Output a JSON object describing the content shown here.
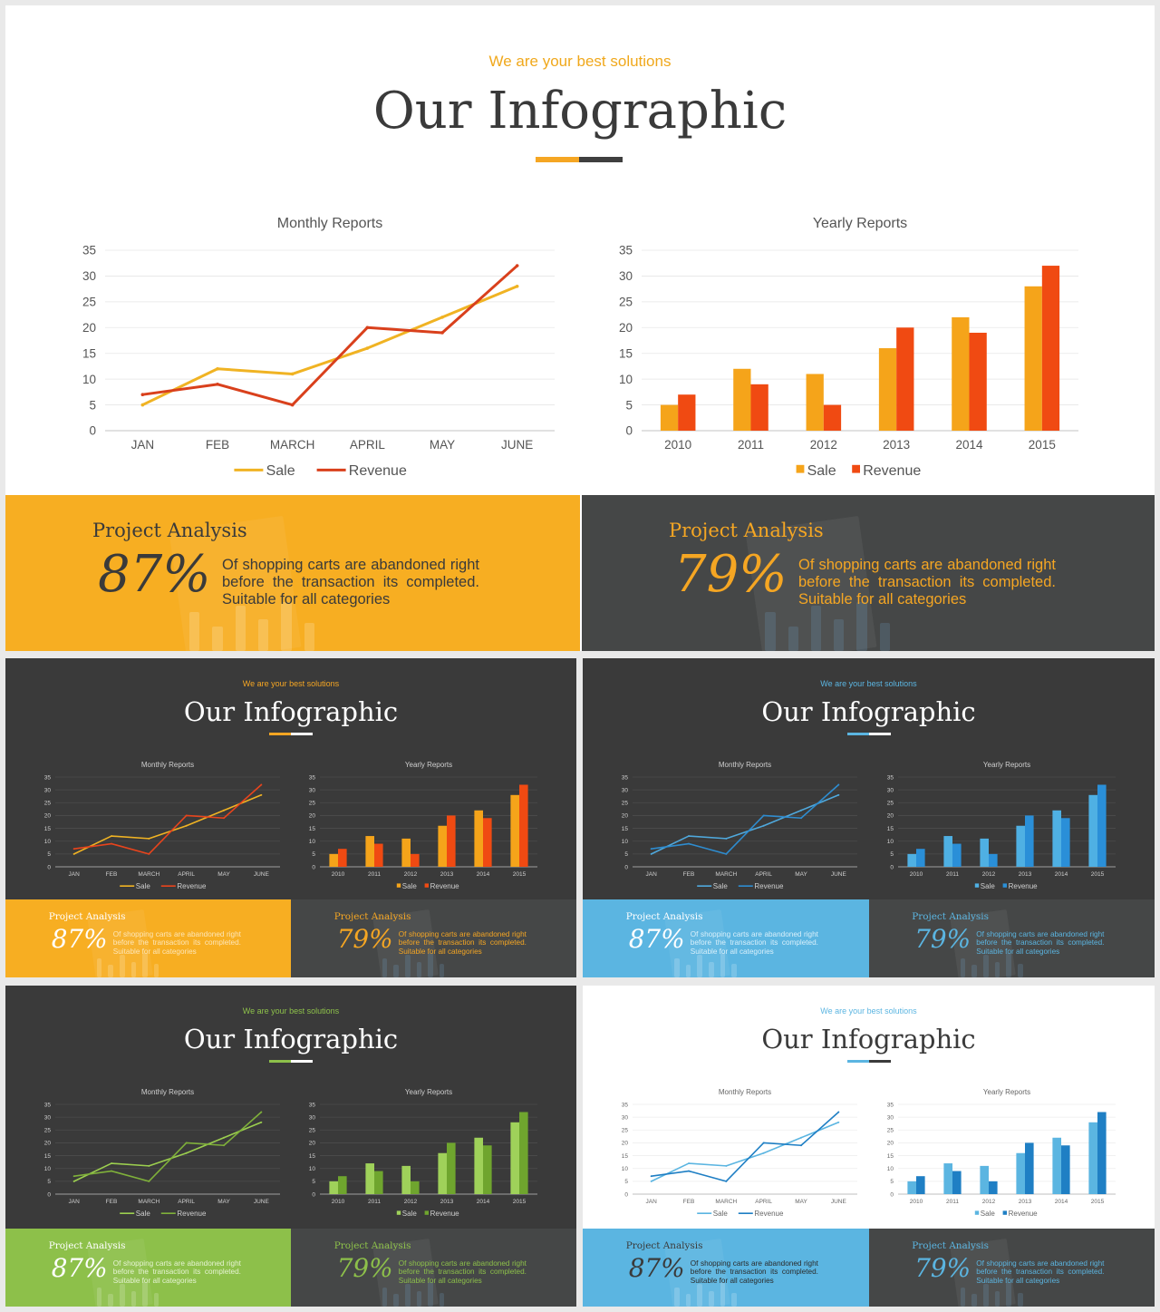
{
  "main": {
    "subtitle": "We are your best solutions",
    "title": "Our Infographic",
    "monthly_title": "Monthly Reports",
    "yearly_title": "Yearly Reports",
    "legend_sale": "Sale",
    "legend_revenue": "Revenue"
  },
  "panels": {
    "heading": "Project Analysis",
    "pct_left": "87%",
    "pct_right": "79%",
    "desc": "Of shopping carts are abandoned right before the transaction its completed. Suitable for all categories"
  },
  "colors": {
    "orange": "#f5a623",
    "orange_line": "#f0b323",
    "red": "#e84c1e",
    "dark": "#3f3f3f",
    "dark_bg": "#3a3a3a",
    "blue": "#5bb5e1",
    "blue_dark": "#1f7fc4",
    "green": "#8dc04a",
    "green_dark": "#6a9a2a"
  },
  "chart_data": [
    {
      "type": "line",
      "title": "Monthly Reports",
      "categories": [
        "JAN",
        "FEB",
        "MARCH",
        "APRIL",
        "MAY",
        "JUNE"
      ],
      "series": [
        {
          "name": "Sale",
          "values": [
            5,
            12,
            11,
            16,
            22,
            28
          ]
        },
        {
          "name": "Revenue",
          "values": [
            7,
            9,
            5,
            20,
            19,
            32
          ]
        }
      ],
      "ylim": [
        0,
        35
      ],
      "yticks": [
        "0",
        "5",
        "10",
        "15",
        "20",
        "25",
        "30",
        "35"
      ],
      "grid": true,
      "legend": "bottom"
    },
    {
      "type": "bar",
      "title": "Yearly Reports",
      "categories": [
        "2010",
        "2011",
        "2012",
        "2013",
        "2014",
        "2015"
      ],
      "series": [
        {
          "name": "Sale",
          "values": [
            5,
            12,
            11,
            16,
            22,
            28
          ]
        },
        {
          "name": "Revenue",
          "values": [
            7,
            9,
            5,
            20,
            19,
            32
          ]
        }
      ],
      "ylim": [
        0,
        35
      ],
      "yticks": [
        "0",
        "5",
        "10",
        "15",
        "20",
        "25",
        "30",
        "35"
      ],
      "grid": true,
      "legend": "bottom"
    }
  ]
}
